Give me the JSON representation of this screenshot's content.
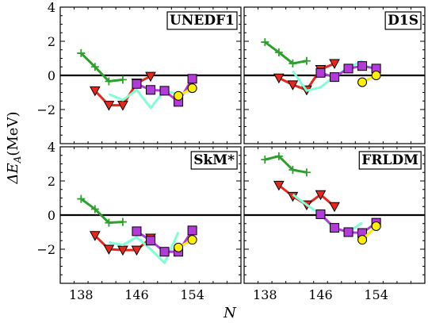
{
  "chart_data": {
    "type": "line",
    "xlabel": "N",
    "ylabel_main": "ΔE",
    "ylabel_sub": "A",
    "ylabel_unit": "(MeV)",
    "xlim": [
      135,
      161
    ],
    "ylim": [
      -4,
      4
    ],
    "xticks": [
      138,
      146,
      154
    ],
    "yticks": [
      -2,
      0,
      2,
      4
    ],
    "grid": false,
    "panels": [
      {
        "label": "UNEDF1",
        "series": [
          {
            "color": "#2ca02c",
            "marker": "plus",
            "x": [
              138,
              140,
              142,
              144
            ],
            "y": [
              1.3,
              0.5,
              -0.35,
              -0.25
            ]
          },
          {
            "color": "#e8261a",
            "marker": "triangle-down",
            "x": [
              140,
              142,
              144,
              146,
              148
            ],
            "y": [
              -0.9,
              -1.75,
              -1.75,
              -0.45,
              -0.05
            ]
          },
          {
            "color": "#7fffd4",
            "marker": "none",
            "x": [
              142,
              144,
              146,
              148,
              150,
              152
            ],
            "y": [
              -1.1,
              -1.45,
              -0.85,
              -1.9,
              -0.9,
              -1.1
            ]
          },
          {
            "color": "#b23bd9",
            "marker": "square",
            "x": [
              146,
              148,
              150,
              152,
              154
            ],
            "y": [
              -0.5,
              -0.85,
              -0.9,
              -1.55,
              -0.2
            ]
          },
          {
            "color": "#ffef00",
            "marker": "circle",
            "x": [
              152,
              154
            ],
            "y": [
              -1.2,
              -0.75
            ]
          }
        ]
      },
      {
        "label": "D1S",
        "series": [
          {
            "color": "#2ca02c",
            "marker": "plus",
            "x": [
              138,
              140,
              142,
              144
            ],
            "y": [
              1.95,
              1.35,
              0.7,
              0.85
            ]
          },
          {
            "color": "#e8261a",
            "marker": "triangle-down",
            "x": [
              140,
              142,
              144,
              146,
              148
            ],
            "y": [
              -0.15,
              -0.55,
              -0.85,
              0.35,
              0.7
            ]
          },
          {
            "color": "#7fffd4",
            "marker": "none",
            "x": [
              142,
              144,
              146,
              148,
              150,
              152
            ],
            "y": [
              0.25,
              -0.9,
              -0.7,
              -0.05,
              0.45,
              0.85
            ]
          },
          {
            "color": "#b23bd9",
            "marker": "square",
            "x": [
              146,
              148,
              150,
              152,
              154
            ],
            "y": [
              0.15,
              -0.1,
              0.4,
              0.55,
              0.4
            ]
          },
          {
            "color": "#ffef00",
            "marker": "circle",
            "x": [
              152,
              154
            ],
            "y": [
              -0.4,
              0.0
            ]
          }
        ]
      },
      {
        "label": "SkM*",
        "series": [
          {
            "color": "#2ca02c",
            "marker": "plus",
            "x": [
              138,
              140,
              142,
              144
            ],
            "y": [
              0.95,
              0.35,
              -0.45,
              -0.4
            ]
          },
          {
            "color": "#e8261a",
            "marker": "triangle-down",
            "x": [
              140,
              142,
              144,
              146,
              148
            ],
            "y": [
              -1.2,
              -2.0,
              -2.05,
              -2.05,
              -1.35
            ]
          },
          {
            "color": "#7fffd4",
            "marker": "none",
            "x": [
              142,
              144,
              146,
              148,
              150,
              152
            ],
            "y": [
              -1.6,
              -1.75,
              -1.3,
              -2.0,
              -2.8,
              -1.0
            ]
          },
          {
            "color": "#b23bd9",
            "marker": "square",
            "x": [
              146,
              148,
              150,
              152,
              154
            ],
            "y": [
              -0.95,
              -1.5,
              -2.15,
              -2.15,
              -0.9
            ]
          },
          {
            "color": "#ffef00",
            "marker": "circle",
            "x": [
              152,
              154
            ],
            "y": [
              -1.9,
              -1.45
            ]
          }
        ]
      },
      {
        "label": "FRLDM",
        "series": [
          {
            "color": "#2ca02c",
            "marker": "plus",
            "x": [
              138,
              140,
              142,
              144
            ],
            "y": [
              3.25,
              3.45,
              2.65,
              2.5
            ]
          },
          {
            "color": "#e8261a",
            "marker": "triangle-down",
            "x": [
              140,
              142,
              144,
              146,
              148
            ],
            "y": [
              1.75,
              1.1,
              0.6,
              1.2,
              0.5
            ]
          },
          {
            "color": "#7fffd4",
            "marker": "none",
            "x": [
              142,
              144,
              146,
              148,
              150,
              152
            ],
            "y": [
              1.2,
              0.6,
              0.05,
              -0.8,
              -1.0,
              -0.45
            ]
          },
          {
            "color": "#b23bd9",
            "marker": "square",
            "x": [
              146,
              148,
              150,
              152,
              154
            ],
            "y": [
              0.05,
              -0.75,
              -1.0,
              -1.05,
              -0.45
            ]
          },
          {
            "color": "#ffef00",
            "marker": "circle",
            "x": [
              152,
              154
            ],
            "y": [
              -1.45,
              -0.65
            ]
          }
        ]
      }
    ]
  }
}
